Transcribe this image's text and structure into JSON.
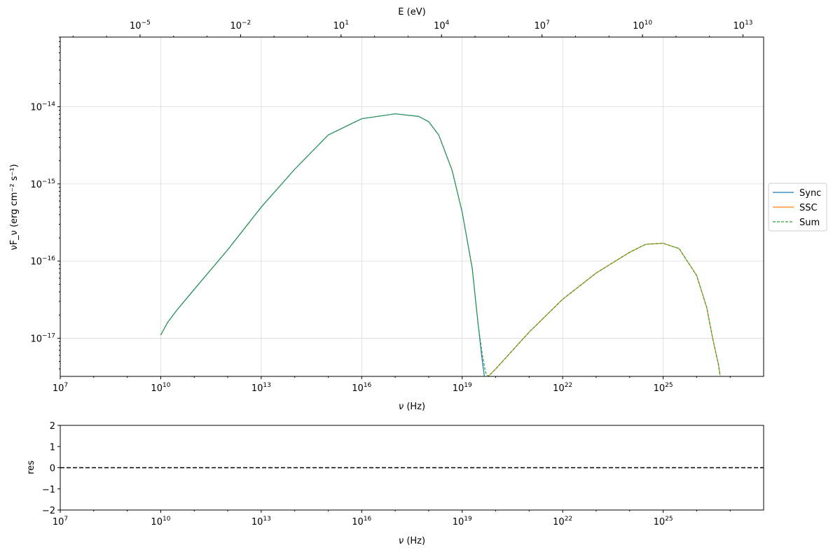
{
  "chart_data": [
    {
      "type": "line",
      "xscale": "log",
      "yscale": "log",
      "xlabel_sym": "ν",
      "xlabel_unit": "(Hz)",
      "ylabel": "νF_ν (erg cm⁻² s⁻¹)",
      "top_axis_label": "E (eV)",
      "xlim": [
        10000000.0,
        1e+28
      ],
      "ylim": [
        3.2e-18,
        8e-14
      ],
      "top_xlim_ev": [
        4.136e-08,
        41360000000000.0
      ],
      "grid": true,
      "legend_position": "outside-right",
      "x_ticks": [
        {
          "base": "10",
          "exp": "7",
          "value": 10000000.0
        },
        {
          "base": "10",
          "exp": "10",
          "value": 10000000000.0
        },
        {
          "base": "10",
          "exp": "13",
          "value": 10000000000000.0
        },
        {
          "base": "10",
          "exp": "16",
          "value": 1e+16
        },
        {
          "base": "10",
          "exp": "19",
          "value": 1e+19
        },
        {
          "base": "10",
          "exp": "22",
          "value": 1e+22
        },
        {
          "base": "10",
          "exp": "25",
          "value": 1e+25
        }
      ],
      "top_ticks": [
        {
          "base": "10",
          "exp": "−5",
          "value": 1e-05
        },
        {
          "base": "10",
          "exp": "−2",
          "value": 0.01
        },
        {
          "base": "10",
          "exp": "1",
          "value": 10.0
        },
        {
          "base": "10",
          "exp": "4",
          "value": 10000.0
        },
        {
          "base": "10",
          "exp": "7",
          "value": 10000000.0
        },
        {
          "base": "10",
          "exp": "10",
          "value": 10000000000.0
        },
        {
          "base": "10",
          "exp": "13",
          "value": 10000000000000.0
        }
      ],
      "y_ticks": [
        {
          "base": "10",
          "exp": "−17",
          "value": 1e-17
        },
        {
          "base": "10",
          "exp": "−16",
          "value": 1e-16
        },
        {
          "base": "10",
          "exp": "−15",
          "value": 1e-15
        },
        {
          "base": "10",
          "exp": "−14",
          "value": 1e-14
        }
      ],
      "series": [
        {
          "name": "Sync",
          "color": "#1f77b4",
          "style": "solid",
          "x": [
            10000000000.0,
            16000000000.0,
            30000000000.0,
            100000000000.0,
            1000000000000.0,
            10000000000000.0,
            100000000000000.0,
            1000000000000000.0,
            1e+16,
            1e+17,
            5e+17,
            1e+18,
            2e+18,
            5e+18,
            1e+19,
            2e+19,
            3e+19,
            4e+19,
            4.6e+19
          ],
          "y": [
            1.1e-17,
            1.6e-17,
            2.3e-17,
            4.3e-17,
            1.4e-16,
            5e-16,
            1.55e-15,
            4.3e-15,
            7e-15,
            8.1e-15,
            7.5e-15,
            6.4e-15,
            4.3e-15,
            1.5e-15,
            4.3e-16,
            8e-17,
            1.5e-17,
            5e-18,
            3.2e-18
          ]
        },
        {
          "name": "SSC",
          "color": "#ff7f0e",
          "style": "solid",
          "x": [
            6e+19,
            1e+20,
            1e+21,
            1e+22,
            1e+23,
            1e+24,
            3e+24,
            1e+25,
            3e+25,
            1e+26,
            2e+26,
            3e+26,
            4.5e+26,
            5e+26
          ],
          "y": [
            3.2e-18,
            4e-18,
            1.2e-17,
            3.2e-17,
            7e-17,
            1.3e-16,
            1.65e-16,
            1.7e-16,
            1.45e-16,
            6.5e-17,
            2.5e-17,
            1e-17,
            4.5e-18,
            3.3e-18
          ]
        },
        {
          "name": "Sum",
          "color": "#2ca02c",
          "style": "dashed",
          "x": [
            10000000000.0,
            16000000000.0,
            30000000000.0,
            100000000000.0,
            1000000000000.0,
            10000000000000.0,
            100000000000000.0,
            1000000000000000.0,
            1e+16,
            1e+17,
            5e+17,
            1e+18,
            2e+18,
            5e+18,
            1e+19,
            2e+19,
            3e+19,
            4e+19,
            5e+19,
            6e+19,
            1e+20,
            1e+21,
            1e+22,
            1e+23,
            1e+24,
            3e+24,
            1e+25,
            3e+25,
            1e+26,
            2e+26,
            3e+26,
            4.5e+26,
            5e+26
          ],
          "y": [
            1.1e-17,
            1.6e-17,
            2.3e-17,
            4.3e-17,
            1.4e-16,
            5e-16,
            1.55e-15,
            4.3e-15,
            7e-15,
            8.1e-15,
            7.5e-15,
            6.4e-15,
            4.3e-15,
            1.5e-15,
            4.3e-16,
            8e-17,
            1.5e-17,
            6e-18,
            3.6e-18,
            3.2e-18,
            4e-18,
            1.2e-17,
            3.2e-17,
            7e-17,
            1.3e-16,
            1.65e-16,
            1.7e-16,
            1.45e-16,
            6.5e-17,
            2.5e-17,
            1e-17,
            4.5e-18,
            3.3e-18
          ]
        }
      ]
    },
    {
      "type": "line",
      "xscale": "log",
      "xlabel_sym": "ν",
      "xlabel_unit": "(Hz)",
      "ylabel": "res",
      "xlim": [
        10000000.0,
        1e+28
      ],
      "ylim": [
        -2,
        2
      ],
      "grid": false,
      "x_ticks": [
        {
          "base": "10",
          "exp": "7",
          "value": 10000000.0
        },
        {
          "base": "10",
          "exp": "10",
          "value": 10000000000.0
        },
        {
          "base": "10",
          "exp": "13",
          "value": 10000000000000.0
        },
        {
          "base": "10",
          "exp": "16",
          "value": 1e+16
        },
        {
          "base": "10",
          "exp": "19",
          "value": 1e+19
        },
        {
          "base": "10",
          "exp": "22",
          "value": 1e+22
        },
        {
          "base": "10",
          "exp": "25",
          "value": 1e+25
        }
      ],
      "y_ticks": [
        {
          "label": "−2",
          "value": -2
        },
        {
          "label": "−1",
          "value": -1
        },
        {
          "label": "0",
          "value": 0
        },
        {
          "label": "1",
          "value": 1
        },
        {
          "label": "2",
          "value": 2
        }
      ],
      "reference_line": {
        "y": 0,
        "color": "#000000",
        "style": "dashed"
      }
    }
  ]
}
